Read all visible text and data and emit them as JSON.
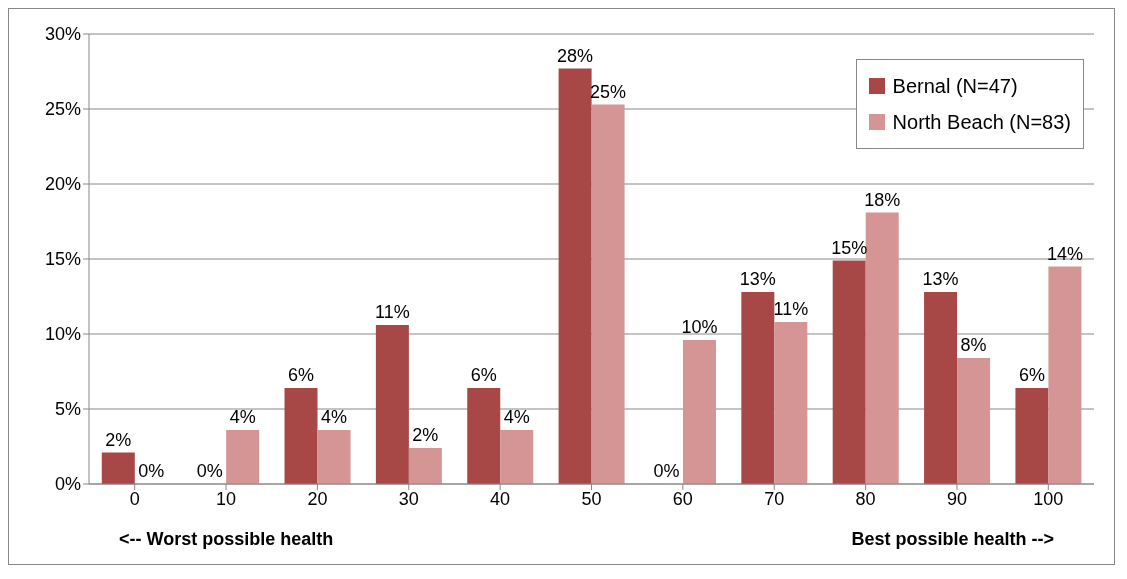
{
  "chart_data": {
    "type": "bar",
    "categories": [
      "0",
      "10",
      "20",
      "30",
      "40",
      "50",
      "60",
      "70",
      "80",
      "90",
      "100"
    ],
    "series": [
      {
        "name": "Bernal (N=47)",
        "color": "#a84846",
        "values": [
          2.1,
          0,
          6.4,
          10.6,
          6.4,
          27.7,
          0,
          12.8,
          14.9,
          12.8,
          6.4
        ],
        "value_labels": [
          "2%",
          "0%",
          "6%",
          "11%",
          "6%",
          "28%",
          "0%",
          "13%",
          "15%",
          "13%",
          "6%"
        ]
      },
      {
        "name": "North Beach (N=83)",
        "color": "#d49594",
        "values": [
          0,
          3.6,
          3.6,
          2.4,
          3.6,
          25.3,
          9.6,
          10.8,
          18.1,
          8.4,
          14.5
        ],
        "value_labels": [
          "0%",
          "4%",
          "4%",
          "2%",
          "4%",
          "25%",
          "10%",
          "11%",
          "18%",
          "8%",
          "14%"
        ]
      }
    ],
    "ylim": [
      0,
      30
    ],
    "yticks": [
      {
        "value": 0,
        "label": "0%"
      },
      {
        "value": 5,
        "label": "5%"
      },
      {
        "value": 10,
        "label": "10%"
      },
      {
        "value": 15,
        "label": "15%"
      },
      {
        "value": 20,
        "label": "20%"
      },
      {
        "value": 25,
        "label": "25%"
      },
      {
        "value": 30,
        "label": "30%"
      }
    ],
    "grid": "y",
    "legend": "top right",
    "annotations": [
      "<-- Worst possible health",
      "Best possible health -->"
    ]
  }
}
